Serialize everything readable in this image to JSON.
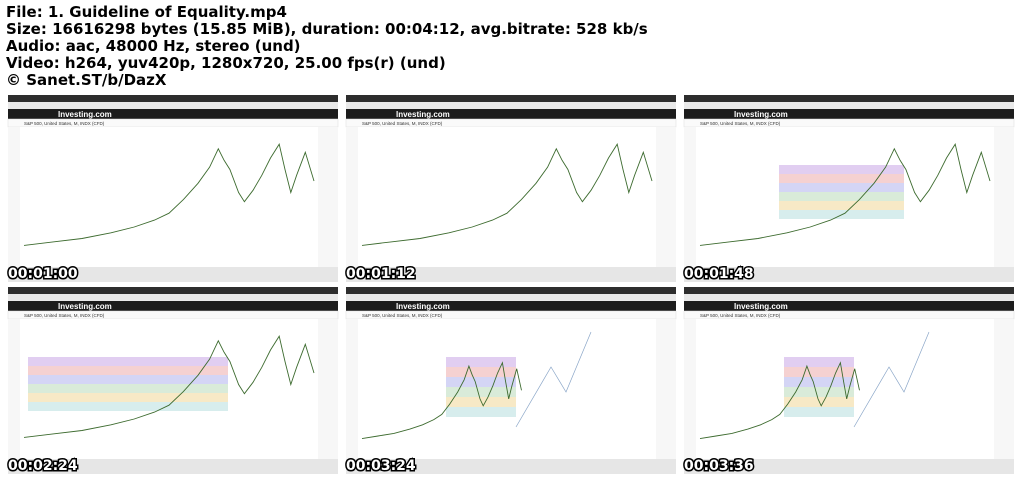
{
  "header": {
    "lines": [
      "File: 1. Guideline of Equality.mp4",
      "Size: 16616298 bytes (15.85 MiB), duration: 00:04:12, avg.bitrate: 528 kb/s",
      "Audio: aac, 48000 Hz, stereo (und)",
      "Video: h264, yuv420p, 1280x720, 25.00 fps(r) (und)",
      "© Sanet.ST/b/DazX"
    ]
  },
  "thumbnails": [
    {
      "time": "00:01:00",
      "site": "Investing.com",
      "instrument": "S&P 500, United States, M, INDX (CFD)"
    },
    {
      "time": "00:01:12",
      "site": "Investing.com",
      "instrument": "S&P 500, United States, M, INDX (CFD)"
    },
    {
      "time": "00:01:48",
      "site": "Investing.com",
      "instrument": "S&P 500, United States, M, INDX (CFD)"
    },
    {
      "time": "00:02:24",
      "site": "Investing.com",
      "instrument": "S&P 500, United States, M, INDX (CFD)"
    },
    {
      "time": "00:03:24",
      "site": "Investing.com",
      "instrument": "S&P 500, United States, M, INDX (CFD)"
    },
    {
      "time": "00:03:36",
      "site": "Investing.com",
      "instrument": "S&P 500, United States, M, INDX (CFD)"
    }
  ]
}
